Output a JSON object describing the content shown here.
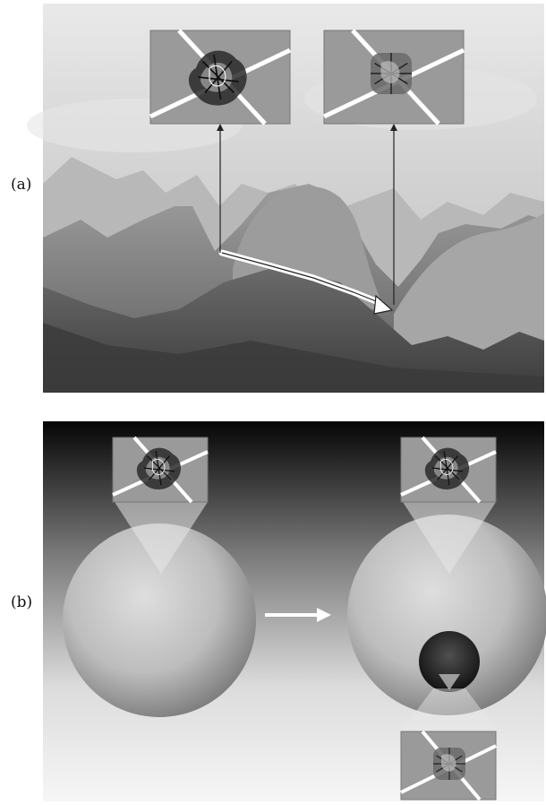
{
  "panels": {
    "a": {
      "label": "(a)"
    },
    "b": {
      "label": "(b)"
    }
  },
  "colors": {
    "sky_light": "#f0f0f0",
    "sky_mid": "#c8c8c8",
    "mountain_far": "#b5b5b5",
    "mountain_mid": "#8e8e8e",
    "mountain_near": "#5a5a5a",
    "inset_bg": "#9a9a9a",
    "panel_b_top": "#0a0a0a",
    "panel_b_bottom": "#f4f4f4",
    "sphere_light": "#dadada",
    "sphere_dark": "#6e6e6e",
    "core_dark": "#1c1c1c"
  },
  "icons": {
    "protein": "folded-protein-icon",
    "arrow": "transition-arrow-icon"
  }
}
